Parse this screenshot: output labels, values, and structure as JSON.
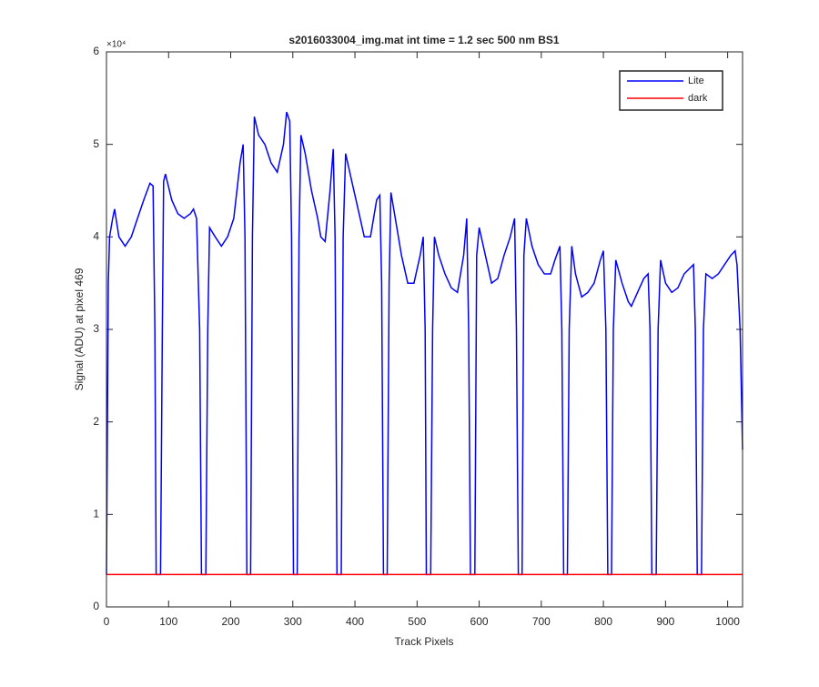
{
  "chart_data": {
    "type": "line",
    "title": "s2016033004_img.mat int time = 1.2 sec  500 nm BS1",
    "xlabel": "Track Pixels",
    "ylabel": "Signal (ADU) at pixel 469",
    "yexponent": "×10⁴",
    "xlim": [
      0,
      1024
    ],
    "ylim": [
      0,
      60000
    ],
    "xticks": [
      0,
      100,
      200,
      300,
      400,
      500,
      600,
      700,
      800,
      900,
      1000
    ],
    "yticks": [
      {
        "value": 0,
        "label": "0"
      },
      {
        "value": 10000,
        "label": "1"
      },
      {
        "value": 20000,
        "label": "2"
      },
      {
        "value": 30000,
        "label": "3"
      },
      {
        "value": 40000,
        "label": "4"
      },
      {
        "value": 50000,
        "label": "5"
      },
      {
        "value": 60000,
        "label": "6"
      }
    ],
    "legend": "top-right",
    "series": [
      {
        "name": "Lite",
        "color": "#0000ff",
        "x": [
          0,
          3,
          5,
          10,
          13,
          20,
          30,
          40,
          50,
          60,
          70,
          75,
          78,
          80,
          87,
          90,
          92,
          95,
          105,
          115,
          125,
          135,
          140,
          145,
          150,
          153,
          160,
          163,
          166,
          175,
          185,
          195,
          205,
          215,
          220,
          223,
          226,
          232,
          235,
          238,
          245,
          255,
          265,
          275,
          285,
          290,
          295,
          298,
          301,
          307,
          310,
          313,
          320,
          330,
          340,
          345,
          352,
          360,
          365,
          368,
          371,
          378,
          381,
          385,
          395,
          405,
          415,
          425,
          435,
          440,
          443,
          446,
          452,
          455,
          458,
          465,
          475,
          485,
          495,
          505,
          510,
          513,
          515,
          522,
          525,
          528,
          535,
          545,
          555,
          565,
          575,
          580,
          583,
          586,
          593,
          596,
          600,
          610,
          620,
          630,
          640,
          650,
          657,
          660,
          663,
          669,
          672,
          676,
          685,
          695,
          705,
          715,
          722,
          730,
          733,
          736,
          742,
          745,
          749,
          755,
          765,
          775,
          785,
          795,
          800,
          804,
          807,
          813,
          816,
          820,
          830,
          840,
          845,
          855,
          865,
          872,
          875,
          878,
          885,
          888,
          892,
          900,
          910,
          920,
          930,
          945,
          948,
          951,
          958,
          961,
          965,
          975,
          985,
          995,
          1005,
          1012,
          1015,
          1020,
          1024
        ],
        "values": [
          3500,
          35000,
          40000,
          42000,
          43000,
          40000,
          39000,
          40000,
          42000,
          44000,
          45800,
          45500,
          30000,
          3500,
          3500,
          30000,
          46000,
          46800,
          44000,
          42500,
          42000,
          42500,
          43000,
          42000,
          30000,
          3500,
          3500,
          30000,
          41000,
          40000,
          39000,
          40000,
          42000,
          48000,
          50000,
          40000,
          3500,
          3500,
          40000,
          53000,
          51000,
          50000,
          48000,
          47000,
          50000,
          53500,
          52500,
          40000,
          3500,
          3500,
          40000,
          51000,
          49000,
          45000,
          42000,
          40000,
          39500,
          45000,
          49500,
          40000,
          3500,
          3500,
          40000,
          49000,
          46000,
          43000,
          40000,
          40000,
          44000,
          44500,
          35000,
          3500,
          3500,
          35000,
          44800,
          42000,
          38000,
          35000,
          35000,
          38000,
          40000,
          30000,
          3500,
          3500,
          30000,
          40000,
          38000,
          36000,
          34500,
          34000,
          38000,
          42000,
          30000,
          3500,
          3500,
          38000,
          41000,
          38000,
          35000,
          35500,
          38000,
          40000,
          42000,
          30000,
          3500,
          3500,
          38000,
          42000,
          39000,
          37000,
          36000,
          36000,
          37500,
          39000,
          30000,
          3500,
          3500,
          30000,
          39000,
          36000,
          33500,
          34000,
          35000,
          37500,
          38500,
          30000,
          3500,
          3500,
          30000,
          37500,
          35000,
          33000,
          32500,
          34000,
          35500,
          36000,
          30000,
          3500,
          3500,
          30000,
          37500,
          35000,
          34000,
          34500,
          36000,
          37000,
          30000,
          3500,
          3500,
          30000,
          36000,
          35500,
          36000,
          37000,
          38000,
          38500,
          37000,
          30000,
          17000
        ]
      },
      {
        "name": "dark",
        "color": "#ff0000",
        "x": [
          0,
          1024
        ],
        "values": [
          3500,
          3500
        ]
      }
    ]
  }
}
